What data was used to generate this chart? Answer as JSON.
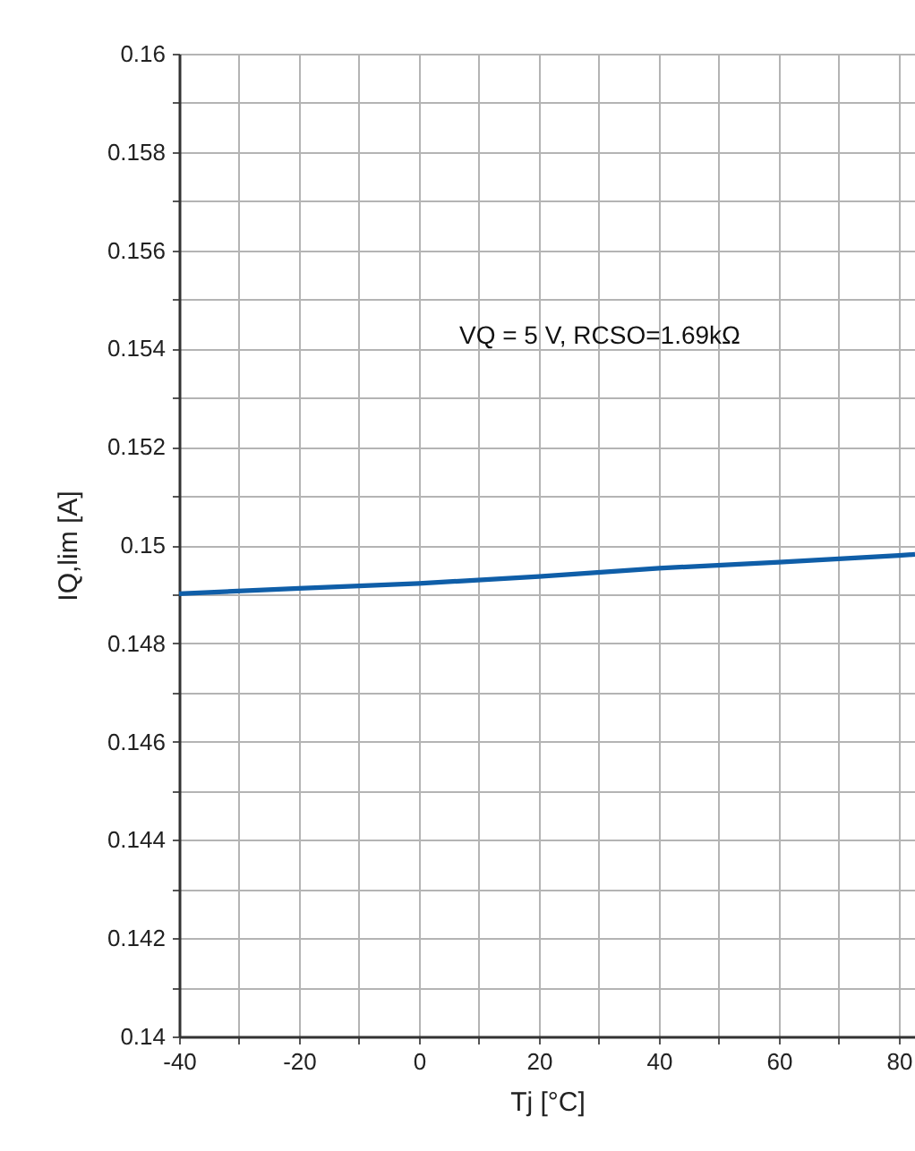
{
  "chart_data": {
    "type": "line",
    "x": [
      -40,
      -20,
      0,
      20,
      40,
      60,
      80,
      82.7
    ],
    "series": [
      {
        "color": "#0f5ea8",
        "values": [
          0.14901,
          0.14912,
          0.14922,
          0.14936,
          0.14953,
          0.14965,
          0.14979,
          0.14981
        ]
      }
    ],
    "xlabel": "Tj [°C]",
    "ylabel": "IQ,lim [A]",
    "annotations": [
      "VQ = 5 V, RCSO=1.69kΩ"
    ],
    "xlim": [
      -40,
      82.7
    ],
    "xticks": [
      -40,
      {
        "value": -30,
        "label": null
      },
      -20,
      {
        "value": -10,
        "label": null
      },
      0,
      {
        "value": 10,
        "label": null
      },
      20,
      {
        "value": 30,
        "label": null
      },
      40,
      {
        "value": 50,
        "label": null
      },
      60,
      {
        "value": 70,
        "label": null
      },
      80
    ],
    "ylim": [
      0.14,
      0.16
    ],
    "yticks": [
      0.14,
      {
        "value": 0.141,
        "label": null
      },
      0.142,
      {
        "value": 0.143,
        "label": null
      },
      0.144,
      {
        "value": 0.145,
        "label": null
      },
      0.146,
      {
        "value": 0.147,
        "label": null
      },
      0.148,
      {
        "value": 0.149,
        "label": null
      },
      0.15,
      {
        "value": 0.151,
        "label": null
      },
      0.152,
      {
        "value": 0.153,
        "label": null
      },
      0.154,
      {
        "value": 0.155,
        "label": null
      },
      0.156,
      {
        "value": 0.157,
        "label": null
      },
      0.158,
      {
        "value": 0.159,
        "label": null
      },
      0.16
    ],
    "grid": true,
    "marker": "none",
    "line_style": "solid"
  }
}
